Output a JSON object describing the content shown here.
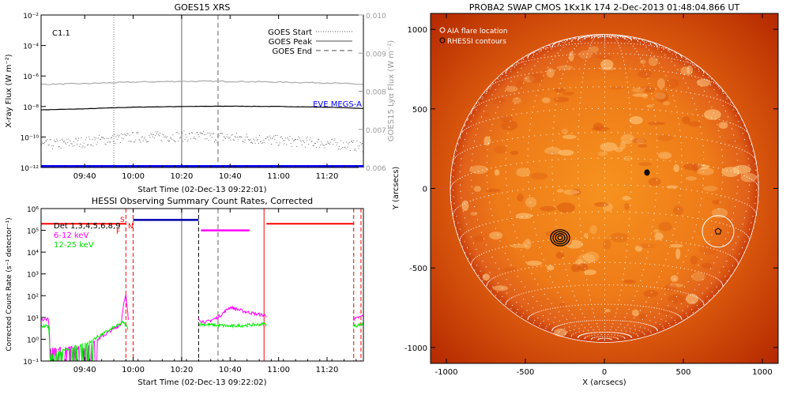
{
  "colors": {
    "goes_long": "#000000",
    "goes_short": "#6a6a6a",
    "lya": "#a9a9a9",
    "eve": "#0000ff",
    "hessi_det": "#ff0000",
    "hessi_low": "#ff00ff",
    "hessi_mid": "#00ee00",
    "night": "#0000aa",
    "saa": "#ff00ff",
    "sun_core": "#f6921e",
    "sun_edge": "#c83c0a",
    "sky": "#b52a00"
  },
  "chart_data": [
    {
      "type": "line",
      "title": "GOES15 XRS",
      "xlabel": "Start Time (02-Dec-13 09:22:01)",
      "ylabel": "X-ray Flux (W m⁻²)",
      "y2label": "GOES15 Lyα Flux (W m⁻²)",
      "x_range": [
        "09:22",
        "11:35"
      ],
      "x_ticks": [
        "09:40",
        "10:00",
        "10:20",
        "10:40",
        "11:00",
        "11:20"
      ],
      "ylim": [
        1e-12,
        0.01
      ],
      "ylog": true,
      "y_ticks": [
        "10⁻¹²",
        "10⁻¹⁰",
        "10⁻⁸",
        "10⁻⁶",
        "10⁻⁴",
        "10⁻²"
      ],
      "y2lim": [
        0.006,
        0.01
      ],
      "y2_ticks": [
        "0.006",
        "0.007",
        "0.008",
        "0.009",
        "0.010"
      ],
      "class_label": "C1.1",
      "legend": [
        {
          "label": "GOES Start",
          "style": "dotted"
        },
        {
          "label": "GOES Peak",
          "style": "solid"
        },
        {
          "label": "GOES End",
          "style": "dashed"
        }
      ],
      "eve_label": "EVE MEGS-A",
      "event_lines": {
        "start": "09:52",
        "peak": "10:20",
        "end": "10:35"
      },
      "series": [
        {
          "key": "long",
          "x": [
            "09:22",
            "09:40",
            "10:00",
            "10:20",
            "10:40",
            "11:00",
            "11:20",
            "11:35"
          ],
          "y": [
            6e-09,
            7e-09,
            9e-09,
            1e-08,
            1.05e-08,
            1e-08,
            9e-09,
            7.5e-09
          ]
        },
        {
          "key": "lya",
          "x": [
            "09:22",
            "09:40",
            "10:00",
            "10:20",
            "10:40",
            "11:00",
            "11:20",
            "11:35"
          ],
          "y": [
            0.00818,
            0.0082,
            0.00824,
            0.00826,
            0.00826,
            0.00824,
            0.00822,
            0.00818
          ]
        },
        {
          "key": "short",
          "x": [
            "09:22",
            "09:40",
            "10:00",
            "10:20",
            "10:40",
            "11:00",
            "11:20",
            "11:35"
          ],
          "y": [
            3e-11,
            5e-11,
            1e-10,
            1.2e-10,
            1e-10,
            6e-11,
            4e-11,
            2.5e-11
          ]
        },
        {
          "key": "eve",
          "x": [
            "09:22",
            "11:35"
          ],
          "y": [
            1.2e-12,
            1.2e-12
          ]
        }
      ]
    },
    {
      "type": "line",
      "title": "HESSI Observing Summary Count Rates, Corrected",
      "xlabel": "Start Time (02-Dec-13 09:22:02)",
      "ylabel": "Corrected Count Rate (s⁻¹ detector⁻¹)",
      "x_range": [
        "09:22",
        "11:35"
      ],
      "x_ticks": [
        "09:40",
        "10:00",
        "10:20",
        "10:40",
        "11:00",
        "11:20"
      ],
      "ylim": [
        0.1,
        1000000.0
      ],
      "ylog": true,
      "y_ticks": [
        "10⁻¹",
        "10⁰",
        "10¹",
        "10²",
        "10³",
        "10⁴",
        "10⁵",
        "10⁶"
      ],
      "legend": [
        "Det 1,3,4,5,6,8,9",
        "6-12 keV",
        "12-25 keV"
      ],
      "markers": [
        "S",
        "F",
        "N"
      ],
      "attenuator_det": [
        {
          "x": [
            "09:22",
            "09:57"
          ],
          "y": [
            200000.0,
            200000.0
          ]
        },
        {
          "x": [
            "10:55",
            "11:31"
          ],
          "y": [
            200000.0,
            200000.0
          ]
        }
      ],
      "night_bar": {
        "x": [
          "10:00",
          "10:27"
        ],
        "y": 300000.0
      },
      "saa_bar": {
        "x": [
          "10:28",
          "10:48"
        ],
        "y": 100000.0
      },
      "series": [
        {
          "key": "low",
          "segments": [
            {
              "x": [
                "09:22",
                "09:25",
                "09:26",
                "09:40",
                "09:55",
                "09:56",
                "09:57",
                "09:58"
              ],
              "y": [
                8,
                8,
                0.4,
                0.4,
                5,
                40,
                100,
                8
              ]
            },
            {
              "x": [
                "10:27",
                "10:30",
                "10:35",
                "10:40",
                "10:45",
                "10:50",
                "10:55"
              ],
              "y": [
                8,
                6,
                10,
                30,
                20,
                15,
                12
              ]
            },
            {
              "x": [
                "11:31",
                "11:33",
                "11:35"
              ],
              "y": [
                8,
                10,
                12
              ]
            }
          ]
        },
        {
          "key": "mid",
          "segments": [
            {
              "x": [
                "09:22",
                "09:25",
                "09:26",
                "09:40",
                "09:56",
                "09:58"
              ],
              "y": [
                4,
                4,
                0.2,
                0.6,
                6,
                3
              ]
            },
            {
              "x": [
                "10:27",
                "10:40",
                "10:55"
              ],
              "y": [
                5,
                4,
                5
              ]
            },
            {
              "x": [
                "11:31",
                "11:35"
              ],
              "y": [
                4,
                5
              ]
            }
          ]
        }
      ],
      "vlines_red": [
        "09:57",
        "10:00",
        "11:31",
        "11:34"
      ],
      "vlines_black_dashed": [
        "10:27"
      ],
      "vlines_gray": [
        "10:20"
      ],
      "vlines_gray_dashed": [
        "10:35"
      ],
      "vlines_red_solid": [
        "10:54"
      ]
    },
    {
      "type": "scatter",
      "title": "PROBA2 SWAP CMOS 1Kx1K 174  2-Dec-2013 01:48:04.866 UT",
      "xlabel": "X (arcsecs)",
      "ylabel": "Y (arcsecs)",
      "xlim": [
        -1100,
        1100
      ],
      "ylim": [
        -1100,
        1100
      ],
      "x_ticks": [
        "-1000",
        "-500",
        "0",
        "500",
        "1000"
      ],
      "y_ticks": [
        "-1000",
        "-500",
        "0",
        "500",
        "1000"
      ],
      "legend": [
        "AIA flare location",
        "RHESSI contours"
      ],
      "solar_radius_arcsec": 975,
      "aia_flare": {
        "x": 720,
        "y": -270,
        "r": 100
      },
      "rhessi_contours": [
        {
          "x": -280,
          "y": -310
        },
        {
          "x": 270,
          "y": 100
        }
      ]
    }
  ]
}
